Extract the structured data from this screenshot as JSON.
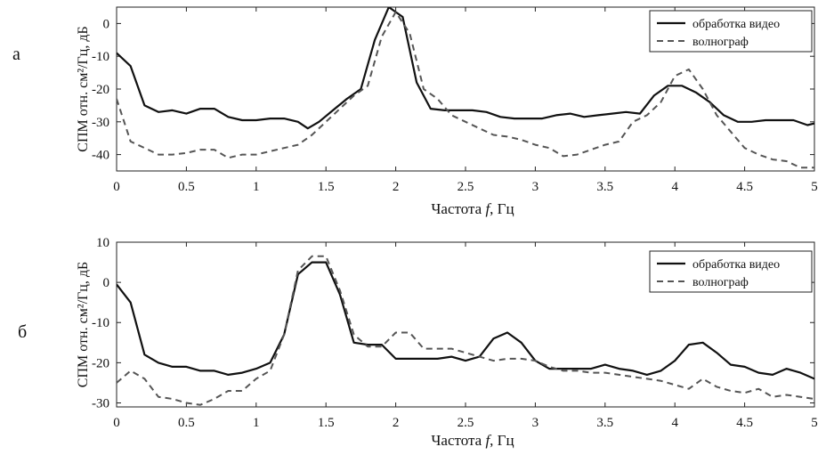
{
  "chart_data": [
    {
      "panel_label": "а",
      "type": "line",
      "xlabel_main": "Частота ",
      "xlabel_var": "f",
      "xlabel_unit": ", Гц",
      "ylabel": "СПМ отн. см²/Гц, дБ",
      "xlim": [
        0,
        5
      ],
      "ylim": [
        -45,
        5
      ],
      "xticks": [
        0,
        0.5,
        1,
        1.5,
        2,
        2.5,
        3,
        3.5,
        4,
        4.5,
        5
      ],
      "xtick_labels": [
        "0",
        "0.5",
        "1",
        "1.5",
        "2",
        "2.5",
        "3",
        "3.5",
        "4",
        "4.5",
        "5"
      ],
      "yticks": [
        0,
        -10,
        -20,
        -30,
        -40
      ],
      "ytick_labels": [
        "0",
        "-10",
        "-20",
        "-30",
        "-40"
      ],
      "legend_position": "top-right",
      "series": [
        {
          "name": "обработка видео",
          "style": "solid",
          "x": [
            0,
            0.1,
            0.2,
            0.3,
            0.4,
            0.5,
            0.6,
            0.7,
            0.8,
            0.9,
            1.0,
            1.1,
            1.2,
            1.3,
            1.37,
            1.45,
            1.55,
            1.65,
            1.75,
            1.85,
            1.95,
            2.05,
            2.15,
            2.25,
            2.35,
            2.45,
            2.55,
            2.65,
            2.75,
            2.85,
            2.95,
            3.05,
            3.15,
            3.25,
            3.35,
            3.45,
            3.55,
            3.65,
            3.75,
            3.85,
            3.95,
            4.05,
            4.15,
            4.25,
            4.35,
            4.45,
            4.55,
            4.65,
            4.75,
            4.85,
            4.95,
            5.0
          ],
          "y": [
            -9,
            -13,
            -25,
            -27,
            -26.5,
            -27.5,
            -26,
            -26,
            -28.5,
            -29.5,
            -29.5,
            -29,
            -29,
            -30,
            -32,
            -30,
            -26.5,
            -23,
            -20,
            -5,
            5,
            2,
            -18,
            -26,
            -26.5,
            -26.5,
            -26.5,
            -27,
            -28.5,
            -29,
            -29,
            -29,
            -28,
            -27.5,
            -28.5,
            -28,
            -27.5,
            -27,
            -27.5,
            -22,
            -19,
            -19,
            -21,
            -24,
            -28,
            -30,
            -30,
            -29.5,
            -29.5,
            -29.5,
            -31,
            -30.5
          ]
        },
        {
          "name": "волнограф",
          "style": "dashed",
          "x": [
            0,
            0.1,
            0.2,
            0.3,
            0.4,
            0.5,
            0.6,
            0.7,
            0.8,
            0.9,
            1.0,
            1.1,
            1.2,
            1.3,
            1.4,
            1.5,
            1.6,
            1.7,
            1.8,
            1.9,
            2.0,
            2.1,
            2.2,
            2.3,
            2.4,
            2.5,
            2.6,
            2.7,
            2.8,
            2.9,
            3.0,
            3.1,
            3.2,
            3.3,
            3.4,
            3.5,
            3.6,
            3.7,
            3.8,
            3.9,
            4.0,
            4.1,
            4.2,
            4.3,
            4.4,
            4.5,
            4.6,
            4.7,
            4.8,
            4.9,
            5.0
          ],
          "y": [
            -23,
            -36,
            -38,
            -40,
            -40,
            -39.5,
            -38.5,
            -38.5,
            -41,
            -40,
            -40,
            -39,
            -38,
            -37,
            -34,
            -30,
            -26,
            -22,
            -19,
            -4,
            3.5,
            -3,
            -20,
            -23,
            -28,
            -30,
            -32,
            -34,
            -34.5,
            -35.5,
            -37,
            -38,
            -40.5,
            -40,
            -38.5,
            -37,
            -36,
            -30,
            -28,
            -24,
            -16,
            -14,
            -20,
            -28,
            -33,
            -38,
            -40,
            -41.5,
            -42,
            -44,
            -44
          ]
        }
      ]
    },
    {
      "panel_label": "б",
      "type": "line",
      "xlabel_main": "Частота ",
      "xlabel_var": "f",
      "xlabel_unit": ", Гц",
      "ylabel": "СПМ отн. см²/Гц, дБ",
      "xlim": [
        0,
        5
      ],
      "ylim": [
        -31,
        10
      ],
      "xticks": [
        0,
        0.5,
        1,
        1.5,
        2,
        2.5,
        3,
        3.5,
        4,
        4.5,
        5
      ],
      "xtick_labels": [
        "0",
        "0.5",
        "1",
        "1.5",
        "2",
        "2.5",
        "3",
        "3.5",
        "4",
        "4.5",
        "5"
      ],
      "yticks": [
        10,
        0,
        -10,
        -20,
        -30
      ],
      "ytick_labels": [
        "10",
        "0",
        "-10",
        "-20",
        "-30"
      ],
      "legend_position": "top-right",
      "series": [
        {
          "name": "обработка видео",
          "style": "solid",
          "x": [
            0,
            0.1,
            0.2,
            0.3,
            0.4,
            0.5,
            0.6,
            0.7,
            0.8,
            0.9,
            1.0,
            1.1,
            1.2,
            1.3,
            1.4,
            1.5,
            1.6,
            1.7,
            1.8,
            1.9,
            2.0,
            2.1,
            2.2,
            2.3,
            2.4,
            2.5,
            2.6,
            2.7,
            2.8,
            2.9,
            3.0,
            3.1,
            3.2,
            3.3,
            3.4,
            3.5,
            3.6,
            3.7,
            3.8,
            3.9,
            4.0,
            4.1,
            4.2,
            4.3,
            4.4,
            4.5,
            4.6,
            4.7,
            4.8,
            4.9,
            5.0
          ],
          "y": [
            -0.5,
            -5,
            -18,
            -20,
            -21,
            -21,
            -22,
            -22,
            -23,
            -22.5,
            -21.5,
            -20,
            -13,
            2,
            5,
            5,
            -3,
            -15,
            -15.5,
            -15.5,
            -19,
            -19,
            -19,
            -19,
            -18.5,
            -19.5,
            -18.5,
            -14,
            -12.5,
            -15,
            -19.5,
            -21.5,
            -21.5,
            -21.5,
            -21.5,
            -20.5,
            -21.5,
            -22,
            -23,
            -22,
            -19.5,
            -15.5,
            -15,
            -17.5,
            -20.5,
            -21,
            -22.5,
            -23,
            -21.5,
            -22.5,
            -24
          ]
        },
        {
          "name": "волнограф",
          "style": "dashed",
          "x": [
            0,
            0.1,
            0.2,
            0.3,
            0.4,
            0.5,
            0.6,
            0.7,
            0.8,
            0.9,
            1.0,
            1.1,
            1.2,
            1.3,
            1.4,
            1.5,
            1.6,
            1.7,
            1.8,
            1.9,
            2.0,
            2.1,
            2.2,
            2.3,
            2.4,
            2.5,
            2.6,
            2.7,
            2.8,
            2.9,
            3.0,
            3.1,
            3.2,
            3.3,
            3.4,
            3.5,
            3.6,
            3.7,
            3.8,
            3.9,
            4.0,
            4.1,
            4.2,
            4.3,
            4.4,
            4.5,
            4.6,
            4.7,
            4.8,
            4.9,
            5.0
          ],
          "y": [
            -25,
            -22,
            -24,
            -28.5,
            -29,
            -30,
            -30.5,
            -29,
            -27,
            -27,
            -24,
            -22,
            -13,
            3,
            6.5,
            6.5,
            -2,
            -13,
            -16,
            -16,
            -12.5,
            -12.5,
            -16.5,
            -16.5,
            -16.5,
            -17.5,
            -18.5,
            -19.5,
            -19,
            -19,
            -19.5,
            -21,
            -22,
            -22,
            -22.5,
            -22.5,
            -23,
            -23.5,
            -24,
            -24.5,
            -25.5,
            -26.5,
            -24,
            -26,
            -27,
            -27.5,
            -26.5,
            -28.5,
            -28,
            -28.5,
            -29
          ]
        }
      ]
    }
  ]
}
